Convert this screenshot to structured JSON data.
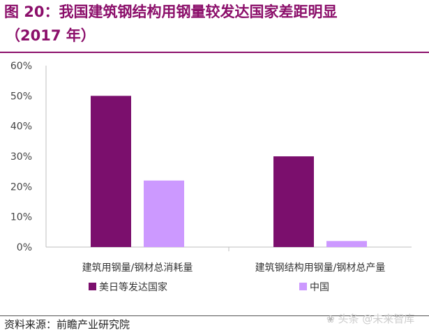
{
  "figure": {
    "title_line1": "图 20：我国建筑钢结构用钢量较发达国家差距明显",
    "title_line2": "（2017 年）",
    "source": "资料来源：前瞻产业研究院",
    "watermark": "头条 @未来智库"
  },
  "chart_data": {
    "type": "bar",
    "categories": [
      "建筑用钢量/钢材总消耗量",
      "建筑钢结构用钢量/钢材总产量"
    ],
    "series": [
      {
        "name": "美日等发达国家",
        "values": [
          50,
          30
        ],
        "color": "#7b0f6d"
      },
      {
        "name": "中国",
        "values": [
          22,
          2
        ],
        "color": "#cc99ff"
      }
    ],
    "ylim": [
      0,
      60
    ],
    "yticks": [
      "0%",
      "10%",
      "20%",
      "30%",
      "40%",
      "50%",
      "60%"
    ],
    "tick_step": 10,
    "unit": "%",
    "grid": false,
    "legend_position": "bottom"
  }
}
